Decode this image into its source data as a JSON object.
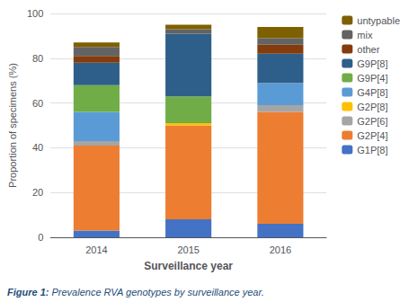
{
  "chart_data": {
    "type": "bar",
    "stacked": true,
    "xlabel": "Surveillance year",
    "ylabel": "Proportion of specimens (%)",
    "categories": [
      "2014",
      "2015",
      "2016"
    ],
    "series": [
      {
        "name": "G1P[8]",
        "color": "#4472C4",
        "values": [
          3,
          8,
          6
        ]
      },
      {
        "name": "G2P[4]",
        "color": "#ED7D31",
        "values": [
          38,
          42,
          50
        ]
      },
      {
        "name": "G2P[6]",
        "color": "#A5A5A5",
        "values": [
          2,
          0,
          3
        ]
      },
      {
        "name": "G2P[8]",
        "color": "#FFC000",
        "values": [
          0,
          1,
          0
        ]
      },
      {
        "name": "G4P[8]",
        "color": "#5B9BD5",
        "values": [
          13,
          0,
          10
        ]
      },
      {
        "name": "G9P[4]",
        "color": "#70AD47",
        "values": [
          12,
          12,
          0
        ]
      },
      {
        "name": "G9P[8]",
        "color": "#2E5F8A",
        "values": [
          10,
          28,
          13
        ]
      },
      {
        "name": "other",
        "color": "#843C0C",
        "values": [
          3,
          0,
          4
        ]
      },
      {
        "name": "mix",
        "color": "#636363",
        "values": [
          4,
          2,
          3
        ]
      },
      {
        "name": "untypable",
        "color": "#7F6000",
        "values": [
          2,
          2,
          5
        ]
      }
    ],
    "ylim": [
      0,
      100
    ],
    "yticks": [
      0,
      20,
      40,
      60,
      80,
      100
    ],
    "grid": true,
    "legend": "right",
    "annotations": [
      {
        "text": "Figure 1: ",
        "color": "#1F4E79"
      },
      {
        "text": "Prevalence RVA genotypes by surveillance year.",
        "color": "#1F4E79"
      }
    ]
  }
}
